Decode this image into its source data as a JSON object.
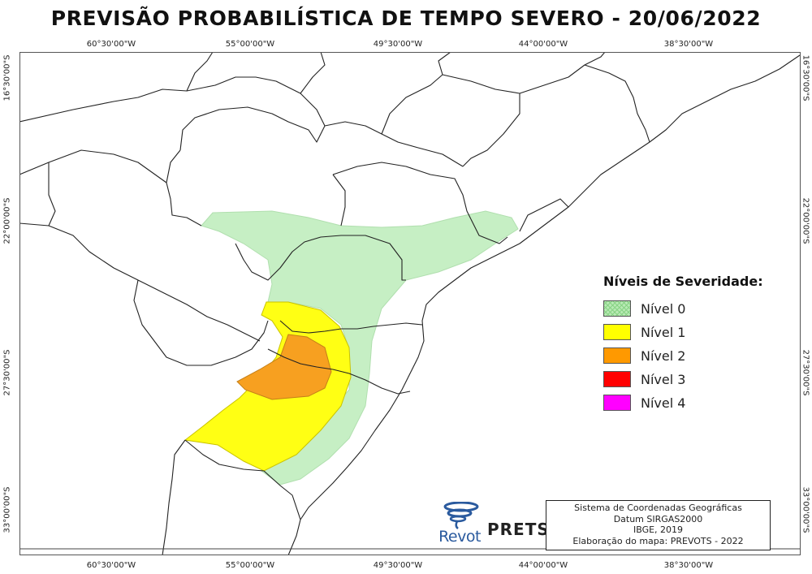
{
  "title": "PREVISÃO PROBABILÍSTICA DE TEMPO SEVERO - 20/06/2022",
  "axes": {
    "longitude_ticks": [
      "60°30'00\"W",
      "55°00'00\"W",
      "49°30'00\"W",
      "44°00'00\"W",
      "38°30'00\"W"
    ],
    "latitude_ticks": [
      "16°30'00\"S",
      "22°00'00\"S",
      "27°30'00\"S",
      "33°00'00\"S"
    ]
  },
  "legend": {
    "title": "Níveis de Severidade:",
    "items": [
      {
        "label": "Nível 0",
        "color": "#b8eab4",
        "pattern": "hatched"
      },
      {
        "label": "Nível 1",
        "color": "#ffff00"
      },
      {
        "label": "Nível 2",
        "color": "#ff9900"
      },
      {
        "label": "Nível 3",
        "color": "#ff0000"
      },
      {
        "label": "Nível 4",
        "color": "#ff00ff"
      }
    ]
  },
  "credits": [
    "Sistema de Coordenadas Geográficas",
    "Datum SIRGAS2000",
    "IBGE, 2019",
    "Elaboração do mapa: PREVOTS - 2022"
  ],
  "logos": {
    "revot": "Revot",
    "prevots": "PRETS"
  },
  "colors": {
    "level0": "#b8eab4",
    "level1": "#ffff00",
    "level2": "#ff9900",
    "level3": "#ff0000",
    "level4": "#ff00ff",
    "border": "#222222"
  }
}
